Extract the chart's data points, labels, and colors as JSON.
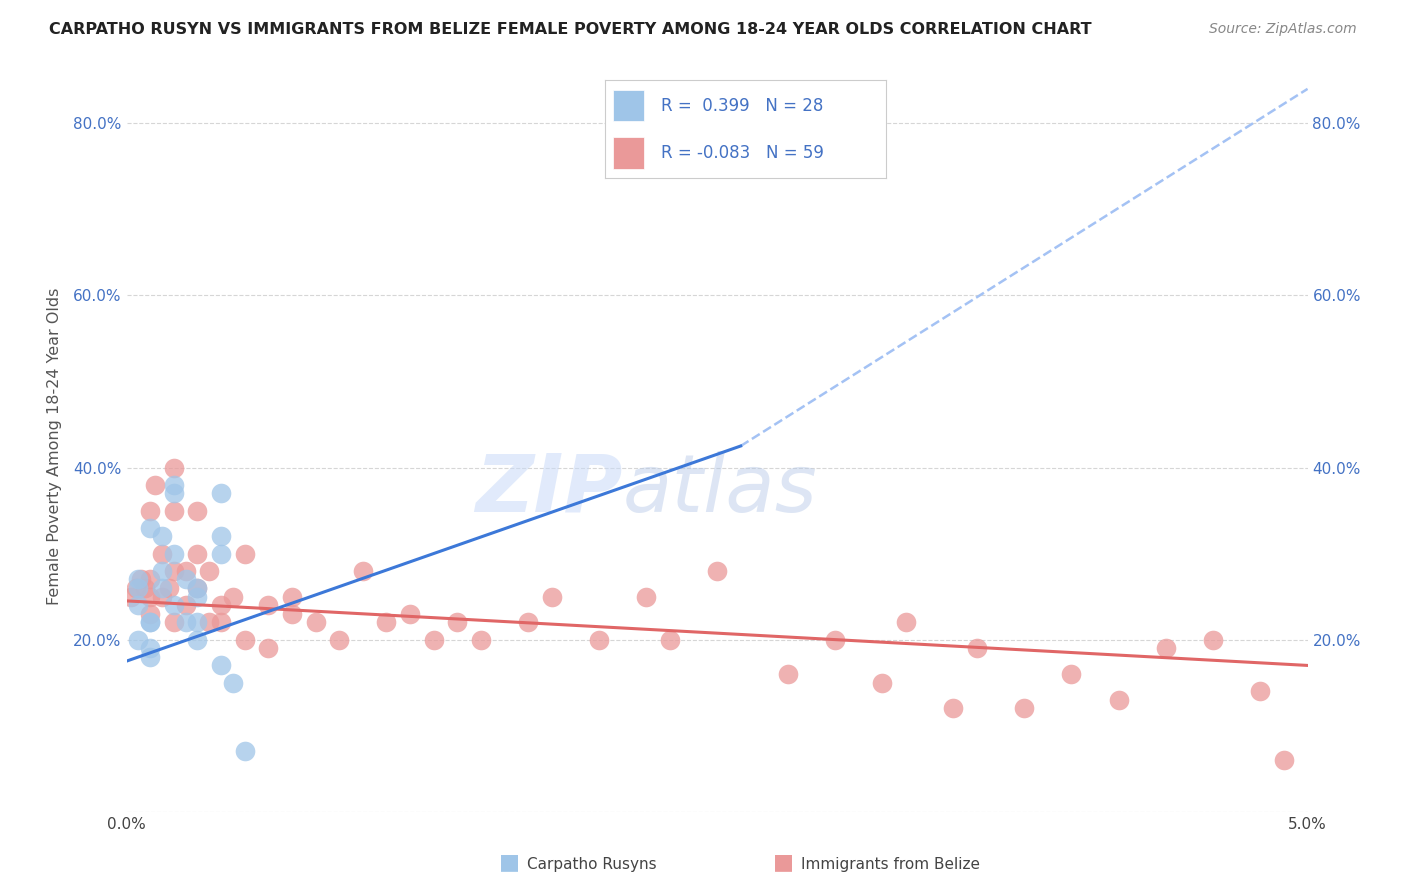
{
  "title": "CARPATHO RUSYN VS IMMIGRANTS FROM BELIZE FEMALE POVERTY AMONG 18-24 YEAR OLDS CORRELATION CHART",
  "source": "Source: ZipAtlas.com",
  "ylabel": "Female Poverty Among 18-24 Year Olds",
  "xlim": [
    0.0,
    0.05
  ],
  "ylim": [
    0.0,
    0.85
  ],
  "yticks": [
    0.0,
    0.2,
    0.4,
    0.6,
    0.8
  ],
  "watermark_zip": "ZIP",
  "watermark_atlas": "atlas",
  "legend_blue_label": "R =  0.399   N = 28",
  "legend_pink_label": "R = -0.083   N = 59",
  "legend_label_blue": "Carpatho Rusyns",
  "legend_label_pink": "Immigrants from Belize",
  "blue_color": "#9fc5e8",
  "pink_color": "#ea9999",
  "blue_line_color": "#3c78d8",
  "pink_line_color": "#e06666",
  "dashed_line_color": "#a4c2f4",
  "background_color": "#ffffff",
  "grid_color": "#cccccc",
  "blue_scatter_x": [
    0.0005,
    0.001,
    0.0015,
    0.0005,
    0.001,
    0.0005,
    0.0005,
    0.001,
    0.001,
    0.001,
    0.0015,
    0.0015,
    0.002,
    0.002,
    0.002,
    0.002,
    0.0025,
    0.0025,
    0.003,
    0.003,
    0.003,
    0.003,
    0.004,
    0.004,
    0.004,
    0.004,
    0.0045,
    0.005
  ],
  "blue_scatter_y": [
    0.26,
    0.33,
    0.32,
    0.27,
    0.22,
    0.24,
    0.2,
    0.19,
    0.18,
    0.22,
    0.28,
    0.26,
    0.38,
    0.37,
    0.3,
    0.24,
    0.27,
    0.22,
    0.2,
    0.22,
    0.26,
    0.25,
    0.37,
    0.32,
    0.3,
    0.17,
    0.15,
    0.07
  ],
  "pink_scatter_x": [
    0.0002,
    0.0004,
    0.0006,
    0.0008,
    0.001,
    0.001,
    0.001,
    0.001,
    0.0012,
    0.0015,
    0.0015,
    0.0018,
    0.002,
    0.002,
    0.002,
    0.002,
    0.0025,
    0.0025,
    0.003,
    0.003,
    0.003,
    0.0035,
    0.0035,
    0.004,
    0.004,
    0.0045,
    0.005,
    0.005,
    0.006,
    0.006,
    0.007,
    0.007,
    0.008,
    0.009,
    0.01,
    0.011,
    0.012,
    0.013,
    0.014,
    0.015,
    0.017,
    0.018,
    0.02,
    0.022,
    0.023,
    0.025,
    0.028,
    0.03,
    0.032,
    0.033,
    0.035,
    0.036,
    0.038,
    0.04,
    0.042,
    0.044,
    0.046,
    0.048,
    0.049
  ],
  "pink_scatter_y": [
    0.25,
    0.26,
    0.27,
    0.26,
    0.35,
    0.27,
    0.25,
    0.23,
    0.38,
    0.3,
    0.25,
    0.26,
    0.4,
    0.35,
    0.28,
    0.22,
    0.28,
    0.24,
    0.35,
    0.3,
    0.26,
    0.22,
    0.28,
    0.24,
    0.22,
    0.25,
    0.3,
    0.2,
    0.24,
    0.19,
    0.23,
    0.25,
    0.22,
    0.2,
    0.28,
    0.22,
    0.23,
    0.2,
    0.22,
    0.2,
    0.22,
    0.25,
    0.2,
    0.25,
    0.2,
    0.28,
    0.16,
    0.2,
    0.15,
    0.22,
    0.12,
    0.19,
    0.12,
    0.16,
    0.13,
    0.19,
    0.2,
    0.14,
    0.06
  ],
  "blue_trend_x0": 0.0,
  "blue_trend_y0": 0.175,
  "blue_trend_x1": 0.026,
  "blue_trend_y1": 0.425,
  "dashed_trend_x0": 0.026,
  "dashed_trend_y0": 0.425,
  "dashed_trend_x1": 0.05,
  "dashed_trend_y1": 0.84,
  "pink_trend_x0": 0.0,
  "pink_trend_y0": 0.245,
  "pink_trend_x1": 0.05,
  "pink_trend_y1": 0.17
}
